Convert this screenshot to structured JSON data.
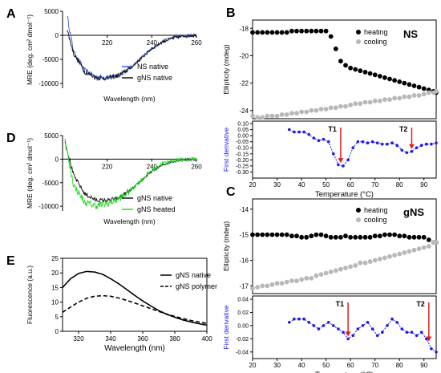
{
  "colors": {
    "ns_native": "#3a5bd9",
    "gns_native": "#111111",
    "gns_heated": "#22dd22",
    "heating": "#000000",
    "cooling": "#b8b8b8",
    "derivative": "#1a1aee",
    "arrow": "#e02020"
  },
  "chart_data": [
    {
      "id": "A",
      "type": "line",
      "panel_label": "A",
      "xlabel": "Wavelength (nm)",
      "ylabel": "MRE (deg. cm² dmol⁻¹)",
      "xlim": [
        200,
        260
      ],
      "ylim": [
        -11000,
        5000
      ],
      "xticks": [
        "220",
        "240",
        "260"
      ],
      "xtick_values": [
        220,
        240,
        260
      ],
      "yticks": [
        "5000",
        "0",
        "-5000",
        "-10000"
      ],
      "ytick_values": [
        5000,
        0,
        -5000,
        -10000
      ],
      "series": [
        {
          "name": "NS native",
          "color_key": "ns_native",
          "noise": 500,
          "x": [
            202,
            205,
            210,
            215,
            220,
            225,
            230,
            235,
            240,
            245,
            250,
            255,
            260
          ],
          "y": [
            4200,
            -3500,
            -7300,
            -8600,
            -8800,
            -8300,
            -6900,
            -4800,
            -2700,
            -1200,
            -400,
            -100,
            0
          ]
        },
        {
          "name": "gNS native",
          "color_key": "gns_native",
          "noise": 500,
          "x": [
            202,
            205,
            210,
            215,
            220,
            225,
            230,
            235,
            240,
            245,
            250,
            255,
            260
          ],
          "y": [
            1200,
            -3800,
            -7600,
            -8800,
            -8900,
            -8400,
            -7000,
            -4900,
            -2800,
            -1300,
            -500,
            -150,
            0
          ]
        }
      ],
      "legend": {
        "entries": [
          "NS native",
          "gNS native"
        ],
        "position": "lower-right"
      }
    },
    {
      "id": "D",
      "type": "line",
      "panel_label": "D",
      "xlabel": "Wavelength (nm)",
      "ylabel": "MRE (deg. cm² dmol⁻¹)",
      "xlim": [
        200,
        260
      ],
      "ylim": [
        -11000,
        5000
      ],
      "xticks": [
        "220",
        "240",
        "260"
      ],
      "xtick_values": [
        220,
        240,
        260
      ],
      "yticks": [
        "5000",
        "0",
        "-5000",
        "-10000"
      ],
      "ytick_values": [
        5000,
        0,
        -5000,
        -10000
      ],
      "series": [
        {
          "name": "gNS native",
          "color_key": "gns_native",
          "noise": 450,
          "x": [
            201,
            205,
            210,
            215,
            220,
            225,
            230,
            235,
            240,
            245,
            250,
            255,
            260
          ],
          "y": [
            3800,
            -3500,
            -7400,
            -8700,
            -8800,
            -8300,
            -6800,
            -4700,
            -2600,
            -1200,
            -400,
            -100,
            0
          ]
        },
        {
          "name": "gNS heated",
          "color_key": "gns_heated",
          "noise": 750,
          "x": [
            201,
            203,
            205,
            210,
            215,
            220,
            225,
            230,
            235,
            240,
            245,
            250,
            255,
            260
          ],
          "y": [
            4500,
            -1000,
            -5500,
            -9200,
            -9900,
            -9500,
            -8500,
            -6800,
            -4500,
            -2300,
            -900,
            -300,
            -100,
            0
          ]
        }
      ],
      "legend": {
        "entries": [
          "gNS native",
          "gNS heated"
        ],
        "position": "lower-right"
      }
    },
    {
      "id": "E",
      "type": "line",
      "panel_label": "E",
      "xlabel": "Wavelength (nm)",
      "ylabel": "Fluorescence (a.u.)",
      "xlim": [
        310,
        400
      ],
      "ylim": [
        0,
        25
      ],
      "xticks": [
        "320",
        "340",
        "360",
        "380",
        "400"
      ],
      "xtick_values": [
        320,
        340,
        360,
        380,
        400
      ],
      "yticks": [
        "0",
        "5",
        "10",
        "15",
        "20",
        "25"
      ],
      "ytick_values": [
        0,
        5,
        10,
        15,
        20,
        25
      ],
      "series": [
        {
          "name": "gNS native",
          "style": "solid",
          "x": [
            310,
            315,
            320,
            325,
            330,
            335,
            340,
            345,
            350,
            355,
            360,
            365,
            370,
            375,
            380,
            385,
            390,
            395,
            400
          ],
          "y": [
            15,
            18,
            19.8,
            20.5,
            20.3,
            19.5,
            18,
            16.3,
            14.3,
            12.3,
            10.4,
            8.7,
            7.1,
            5.8,
            4.8,
            3.9,
            3.2,
            2.6,
            2.1
          ]
        },
        {
          "name": "gNS polymer",
          "style": "dashed",
          "x": [
            310,
            315,
            320,
            325,
            330,
            335,
            340,
            345,
            350,
            355,
            360,
            365,
            370,
            375,
            380,
            385,
            390,
            395,
            400
          ],
          "y": [
            6.5,
            8.3,
            10,
            11.3,
            12,
            12.2,
            12,
            11.4,
            10.6,
            9.7,
            8.7,
            7.8,
            6.8,
            5.9,
            5.1,
            4.4,
            3.7,
            3.2,
            2.7
          ]
        }
      ],
      "legend": {
        "entries": [
          "gNS native",
          "gNS polymer"
        ],
        "position": "top-right"
      }
    },
    {
      "id": "B",
      "type": "scatter",
      "panel_label": "B",
      "annotation": "NS",
      "xlabel": "Temperature (°C)",
      "top": {
        "ylabel": "Ellipticity (mdeg)",
        "ylim": [
          -24.6,
          -17.4
        ],
        "yticks": [
          "-18",
          "-20",
          "-22",
          "-24"
        ],
        "ytick_values": [
          -18,
          -20,
          -22,
          -24
        ],
        "series": [
          {
            "name": "heating",
            "color_key": "heating",
            "x": [
              20,
              22,
              24,
              26,
              28,
              30,
              32,
              34,
              36,
              38,
              40,
              42,
              44,
              46,
              48,
              50,
              52,
              54,
              56,
              58,
              60,
              62,
              64,
              66,
              68,
              70,
              72,
              74,
              76,
              78,
              80,
              82,
              84,
              86,
              88,
              90,
              92,
              94,
              95
            ],
            "y": [
              -18.3,
              -18.3,
              -18.3,
              -18.3,
              -18.3,
              -18.3,
              -18.3,
              -18.3,
              -18.2,
              -18.2,
              -18.2,
              -18.2,
              -18.2,
              -18.2,
              -18.2,
              -18.2,
              -18.6,
              -19.5,
              -20.4,
              -20.7,
              -20.9,
              -21.0,
              -21.1,
              -21.2,
              -21.3,
              -21.4,
              -21.5,
              -21.6,
              -21.7,
              -21.8,
              -21.9,
              -22.0,
              -22.1,
              -22.2,
              -22.3,
              -22.4,
              -22.5,
              -22.6,
              -22.7
            ]
          },
          {
            "name": "cooling",
            "color_key": "cooling",
            "x": [
              20,
              22,
              24,
              26,
              28,
              30,
              32,
              34,
              36,
              38,
              40,
              42,
              44,
              46,
              48,
              50,
              52,
              54,
              56,
              58,
              60,
              62,
              64,
              66,
              68,
              70,
              72,
              74,
              76,
              78,
              80,
              82,
              84,
              86,
              88,
              90,
              92,
              94,
              95
            ],
            "y": [
              -24.4,
              -24.5,
              -24.5,
              -24.4,
              -24.4,
              -24.4,
              -24.3,
              -24.3,
              -24.2,
              -24.2,
              -24.1,
              -24.1,
              -24.0,
              -24.0,
              -23.9,
              -23.9,
              -23.8,
              -23.8,
              -23.7,
              -23.7,
              -23.6,
              -23.5,
              -23.5,
              -23.4,
              -23.4,
              -23.3,
              -23.3,
              -23.2,
              -23.2,
              -23.1,
              -23.1,
              -23.0,
              -23.0,
              -22.9,
              -22.9,
              -22.8,
              -22.7,
              -22.7,
              -22.6
            ]
          }
        ],
        "legend": {
          "entries": [
            "heating",
            "cooling"
          ],
          "position": "top-right"
        }
      },
      "bottom": {
        "ylabel": "First derivative",
        "ylim": [
          -0.35,
          0.12
        ],
        "yticks": [
          "0.10",
          "0.05",
          "0.00",
          "-0.05",
          "-0.10",
          "-0.15",
          "-0.20",
          "-0.25",
          "-0.30"
        ],
        "ytick_values": [
          0.1,
          0.05,
          0.0,
          -0.05,
          -0.1,
          -0.15,
          -0.2,
          -0.25,
          -0.3
        ],
        "series": [
          {
            "name": "first derivative",
            "color_key": "derivative",
            "x": [
              35,
              37,
              39,
              41,
              43,
              45,
              47,
              49,
              51,
              53,
              55,
              57,
              59,
              61,
              63,
              65,
              67,
              69,
              71,
              73,
              75,
              77,
              79,
              81,
              83,
              85,
              87,
              89,
              91,
              93,
              95
            ],
            "y": [
              0.05,
              0.03,
              0.03,
              0.03,
              0.01,
              -0.02,
              -0.04,
              -0.03,
              -0.05,
              -0.15,
              -0.24,
              -0.25,
              -0.2,
              -0.1,
              -0.05,
              -0.05,
              -0.06,
              -0.05,
              -0.06,
              -0.07,
              -0.07,
              -0.06,
              -0.08,
              -0.12,
              -0.14,
              -0.13,
              -0.1,
              -0.08,
              -0.07,
              -0.07,
              -0.06
            ]
          }
        ],
        "markers": [
          {
            "label": "T1",
            "x": 56
          },
          {
            "label": "T2",
            "x": 85
          }
        ]
      },
      "xlim": [
        20,
        95
      ],
      "xticks": [
        "20",
        "30",
        "40",
        "50",
        "60",
        "70",
        "80",
        "90"
      ],
      "xtick_values": [
        20,
        30,
        40,
        50,
        60,
        70,
        80,
        90
      ]
    },
    {
      "id": "C",
      "type": "scatter",
      "panel_label": "C",
      "annotation": "gNS",
      "xlabel": "Temperature (°C)",
      "top": {
        "ylabel": "Ellipticity (mdeg)",
        "ylim": [
          -17.3,
          -13.6
        ],
        "yticks": [
          "-14",
          "-15",
          "-16",
          "-17"
        ],
        "ytick_values": [
          -14,
          -15,
          -16,
          -17
        ],
        "series": [
          {
            "name": "heating",
            "color_key": "heating",
            "x": [
              20,
              22,
              24,
              26,
              28,
              30,
              32,
              34,
              36,
              38,
              40,
              42,
              44,
              46,
              48,
              50,
              52,
              54,
              56,
              58,
              60,
              62,
              64,
              66,
              68,
              70,
              72,
              74,
              76,
              78,
              80,
              82,
              84,
              86,
              88,
              90,
              92,
              94,
              95
            ],
            "y": [
              -15.0,
              -15.0,
              -15.0,
              -15.0,
              -15.0,
              -15.0,
              -15.0,
              -15.0,
              -15.05,
              -15.05,
              -15.1,
              -15.1,
              -15.05,
              -15.0,
              -15.0,
              -15.05,
              -15.1,
              -15.1,
              -15.1,
              -15.05,
              -15.1,
              -15.1,
              -15.1,
              -15.1,
              -15.1,
              -15.05,
              -15.05,
              -15.0,
              -15.0,
              -15.0,
              -15.05,
              -15.05,
              -15.1,
              -15.1,
              -15.1,
              -15.1,
              -15.2,
              -15.3,
              -15.3
            ]
          },
          {
            "name": "cooling",
            "color_key": "cooling",
            "x": [
              20,
              22,
              24,
              26,
              28,
              30,
              32,
              34,
              36,
              38,
              40,
              42,
              44,
              46,
              48,
              50,
              52,
              54,
              56,
              58,
              60,
              62,
              64,
              66,
              68,
              70,
              72,
              74,
              76,
              78,
              80,
              82,
              84,
              86,
              88,
              90,
              92,
              94,
              95
            ],
            "y": [
              -17.1,
              -17.05,
              -17.0,
              -17.0,
              -16.95,
              -16.9,
              -16.9,
              -16.85,
              -16.8,
              -16.8,
              -16.75,
              -16.7,
              -16.7,
              -16.6,
              -16.55,
              -16.5,
              -16.45,
              -16.4,
              -16.35,
              -16.3,
              -16.25,
              -16.2,
              -16.1,
              -16.1,
              -16.05,
              -16.0,
              -15.95,
              -15.9,
              -15.85,
              -15.8,
              -15.75,
              -15.7,
              -15.65,
              -15.6,
              -15.55,
              -15.5,
              -15.45,
              -15.3,
              -15.3
            ]
          }
        ],
        "legend": {
          "entries": [
            "heating",
            "cooling"
          ],
          "position": "top-right"
        }
      },
      "bottom": {
        "ylabel": "First derivative",
        "ylim": [
          -0.05,
          0.045
        ],
        "yticks": [
          "0.04",
          "0.02",
          "0.00",
          "-0.02",
          "-0.04"
        ],
        "ytick_values": [
          0.04,
          0.02,
          0.0,
          -0.02,
          -0.04
        ],
        "series": [
          {
            "name": "first derivative",
            "color_key": "derivative",
            "x": [
              35,
              37,
              39,
              41,
              43,
              45,
              47,
              49,
              51,
              53,
              55,
              57,
              59,
              61,
              63,
              65,
              67,
              69,
              71,
              73,
              75,
              77,
              79,
              81,
              83,
              85,
              87,
              89,
              91,
              93,
              95
            ],
            "y": [
              0.005,
              0.01,
              0.01,
              0.01,
              0.005,
              0.0,
              -0.005,
              0.0,
              0.005,
              0.0,
              -0.005,
              -0.01,
              -0.02,
              -0.015,
              -0.005,
              0.0,
              0.005,
              -0.005,
              -0.015,
              -0.01,
              0.0,
              0.01,
              0.005,
              -0.005,
              -0.01,
              -0.01,
              -0.015,
              -0.01,
              -0.02,
              -0.035,
              -0.04
            ]
          }
        ],
        "markers": [
          {
            "label": "T1",
            "x": 59
          },
          {
            "label": "T2",
            "x": 92
          }
        ]
      },
      "xlim": [
        20,
        95
      ],
      "xticks": [
        "20",
        "30",
        "40",
        "50",
        "60",
        "70",
        "80",
        "90"
      ],
      "xtick_values": [
        20,
        30,
        40,
        50,
        60,
        70,
        80,
        90
      ]
    }
  ]
}
